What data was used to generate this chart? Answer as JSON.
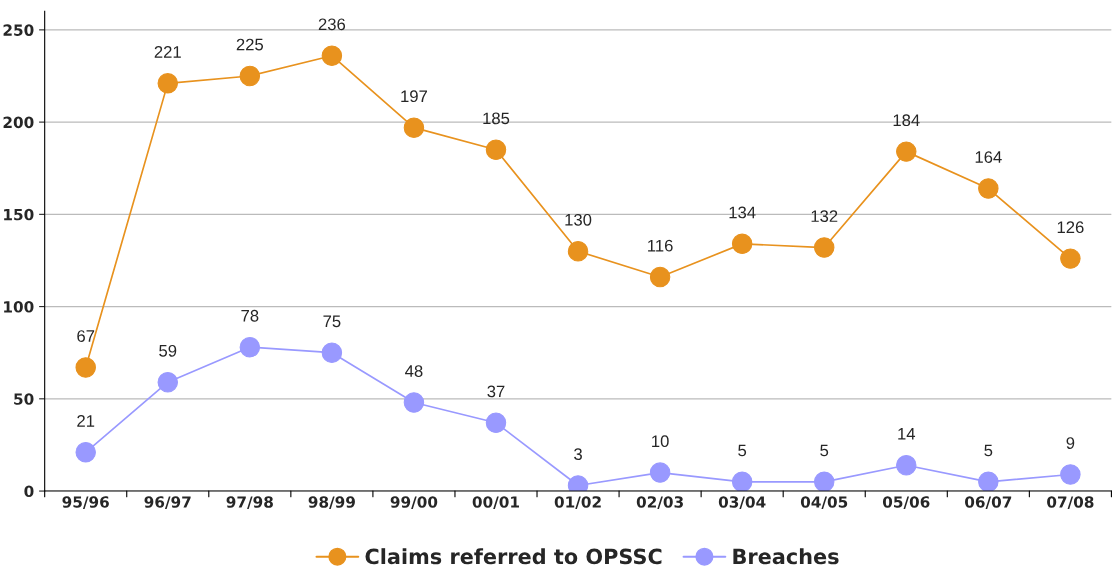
{
  "chart_data": {
    "type": "line",
    "categories": [
      "95/96",
      "96/97",
      "97/98",
      "98/99",
      "99/00",
      "00/01",
      "01/02",
      "02/03",
      "03/04",
      "04/05",
      "05/06",
      "06/07",
      "07/08"
    ],
    "series": [
      {
        "name": "Claims referred to OPSSC",
        "color": "#e8921e",
        "values": [
          67,
          221,
          225,
          236,
          197,
          185,
          130,
          116,
          134,
          132,
          184,
          164,
          126
        ]
      },
      {
        "name": "Breaches",
        "color": "#9999ff",
        "values": [
          21,
          59,
          78,
          75,
          48,
          37,
          3,
          10,
          5,
          5,
          14,
          5,
          9
        ]
      }
    ],
    "ylim": [
      0,
      260
    ],
    "yticks": [
      0,
      50,
      100,
      150,
      200,
      250
    ],
    "grid": "y",
    "legend": "bottom",
    "marker": "circle",
    "line_style": "solid",
    "data_labels": true
  }
}
